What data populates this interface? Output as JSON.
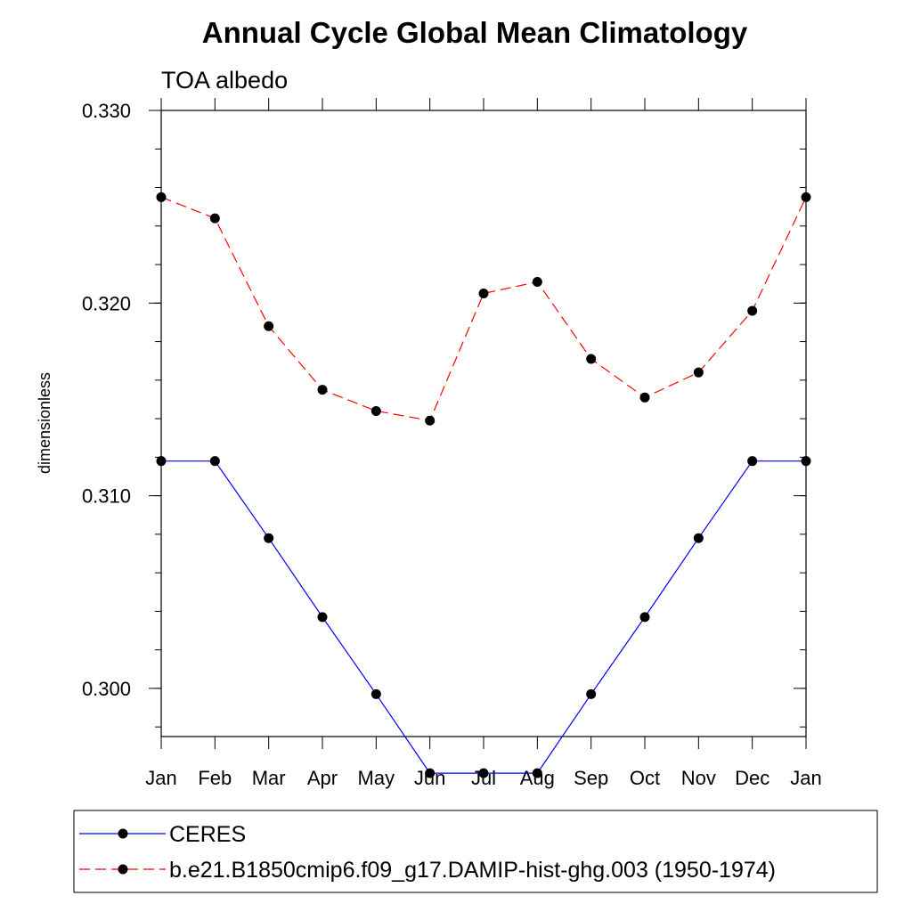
{
  "chart_data": {
    "type": "line",
    "title": "Annual Cycle Global Mean Climatology",
    "subtitle": "TOA albedo",
    "xlabel": "",
    "ylabel": "dimensionless",
    "categories": [
      "Jan",
      "Feb",
      "Mar",
      "Apr",
      "May",
      "Jun",
      "Jul",
      "Aug",
      "Sep",
      "Oct",
      "Nov",
      "Dec",
      "Jan"
    ],
    "ylim": [
      0.2975,
      0.33
    ],
    "yticks": [
      0.3,
      0.31,
      0.32,
      0.33
    ],
    "ytick_labels": [
      "0.300",
      "0.310",
      "0.320",
      "0.330"
    ],
    "yminor_step": 0.002,
    "grid": false,
    "legend_position": "bottom",
    "series": [
      {
        "name": "CERES",
        "color": "#0000ff",
        "dash": "solid",
        "marker": "circle",
        "values": [
          0.3118,
          0.3118,
          0.3078,
          0.3037,
          0.2997,
          0.2956,
          0.2956,
          0.2956,
          0.2997,
          0.3037,
          0.3078,
          0.3118,
          0.3118
        ]
      },
      {
        "name": "b.e21.B1850cmip6.f09_g17.DAMIP-hist-ghg.003 (1950-1974)",
        "color": "#ff0000",
        "dash": "dashed",
        "marker": "circle",
        "values": [
          0.3255,
          0.3244,
          0.3188,
          0.3155,
          0.3144,
          0.3139,
          0.3205,
          0.3211,
          0.3171,
          0.3151,
          0.3164,
          0.3196,
          0.3255
        ]
      }
    ]
  }
}
